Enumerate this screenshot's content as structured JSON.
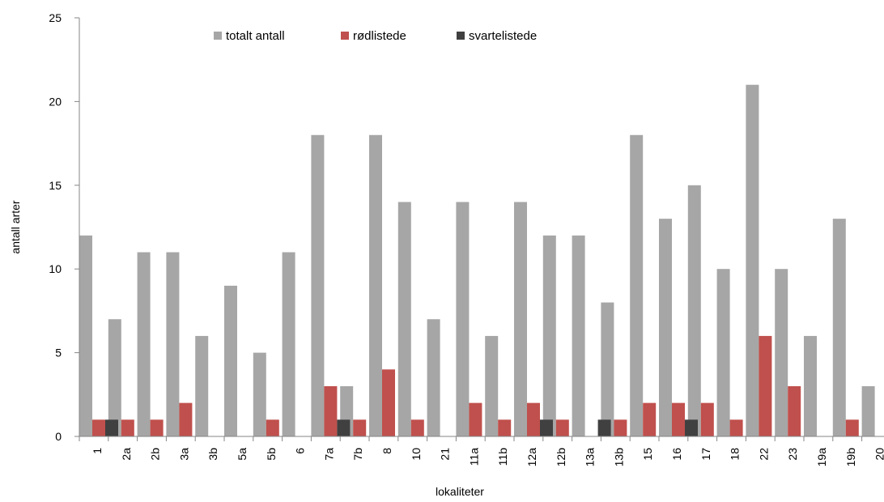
{
  "chart_data": {
    "type": "bar",
    "xlabel": "lokaliteter",
    "ylabel": "antall arter",
    "ylim": [
      0,
      25
    ],
    "yticks": [
      0,
      5,
      10,
      15,
      20,
      25
    ],
    "grid": false,
    "legend_position": "top",
    "categories": [
      "1",
      "2a",
      "2b",
      "3a",
      "3b",
      "5a",
      "5b",
      "6",
      "7a",
      "7b",
      "8",
      "10",
      "21",
      "11a",
      "11b",
      "12a",
      "12b",
      "13a",
      "13b",
      "15",
      "16",
      "17",
      "18",
      "22",
      "23",
      "19a",
      "19b",
      "20"
    ],
    "series": [
      {
        "name": "totalt antall",
        "color": "#a6a6a6",
        "values": [
          12,
          7,
          11,
          11,
          6,
          9,
          5,
          11,
          18,
          3,
          18,
          14,
          7,
          14,
          6,
          14,
          12,
          12,
          8,
          18,
          13,
          15,
          10,
          21,
          10,
          6,
          13,
          3
        ]
      },
      {
        "name": "rødlistede",
        "color": "#c0504d",
        "values": [
          1,
          1,
          1,
          2,
          0,
          0,
          1,
          0,
          3,
          1,
          4,
          1,
          0,
          2,
          1,
          2,
          1,
          0,
          1,
          2,
          2,
          2,
          1,
          6,
          3,
          0,
          1,
          0
        ]
      },
      {
        "name": "svartelistede",
        "color": "#404040",
        "values": [
          1,
          0,
          0,
          0,
          0,
          0,
          0,
          0,
          1,
          0,
          0,
          0,
          0,
          0,
          0,
          1,
          0,
          1,
          0,
          0,
          1,
          0,
          0,
          0,
          0,
          0,
          0,
          0
        ]
      }
    ]
  }
}
